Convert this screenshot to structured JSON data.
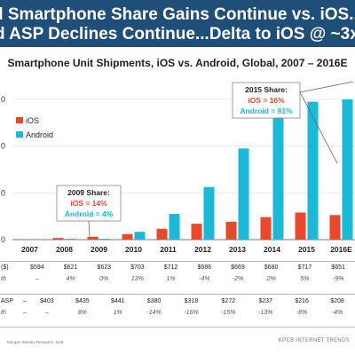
{
  "header": {
    "line1": "d Smartphone Share Gains Continue vs. iOS...",
    "line2": "d ASP Declines Continue...Delta to iOS @ ~3x"
  },
  "chart_data": {
    "type": "bar",
    "title": "Smartphone Unit Shipments, iOS vs. Android, Global, 2007 – 2016E",
    "categories": [
      "2007",
      "2008",
      "2009",
      "2010",
      "2011",
      "2012",
      "2013",
      "2014",
      "2015",
      "2016E"
    ],
    "series": [
      {
        "name": "iOS",
        "color": "#e8482c",
        "values": [
          4,
          14,
          25,
          47,
          93,
          136,
          153,
          193,
          232,
          210
        ]
      },
      {
        "name": "Android",
        "color": "#1bb8d8",
        "values": [
          0,
          7,
          7,
          67,
          220,
          450,
          780,
          1040,
          1180,
          1200
        ]
      }
    ],
    "ylim": [
      0,
      1200
    ],
    "yticks_partial": [
      "0",
      "0",
      "0",
      "0"
    ],
    "annotations": [
      {
        "title": "2009 Share:",
        "ios": "iOS = 14%",
        "android": "Android = 4%"
      },
      {
        "title": "2015 Share:",
        "ios": "iOS = 16%",
        "android": "Android = 81%"
      }
    ]
  },
  "table": {
    "asp_label": "($)",
    "ios_asp": [
      "$594",
      "$621",
      "$623",
      "$703",
      "$712",
      "$686",
      "$669",
      "$680",
      "$717",
      "$651"
    ],
    "ios_growth_label": "th",
    "ios_growth": [
      "–",
      "4%",
      "0%",
      "13%",
      "1%",
      "-4%",
      "-2%",
      "2%",
      "5%",
      "-9%"
    ],
    "android_asp_label": "ASP",
    "android_asp": [
      "–",
      "$403",
      "$435",
      "$441",
      "$380",
      "$318",
      "$272",
      "$237",
      "$216",
      "$208"
    ],
    "android_growth_label": "th",
    "android_growth": [
      "–",
      "–",
      "8%",
      "1%",
      "-14%",
      "-16%",
      "-15%",
      "-13%",
      "-8%",
      "-4%"
    ]
  },
  "footer": {
    "source": "Morgan Stanley Research, 5/16.",
    "brand": "KPCB INTERNET TRENDS"
  }
}
